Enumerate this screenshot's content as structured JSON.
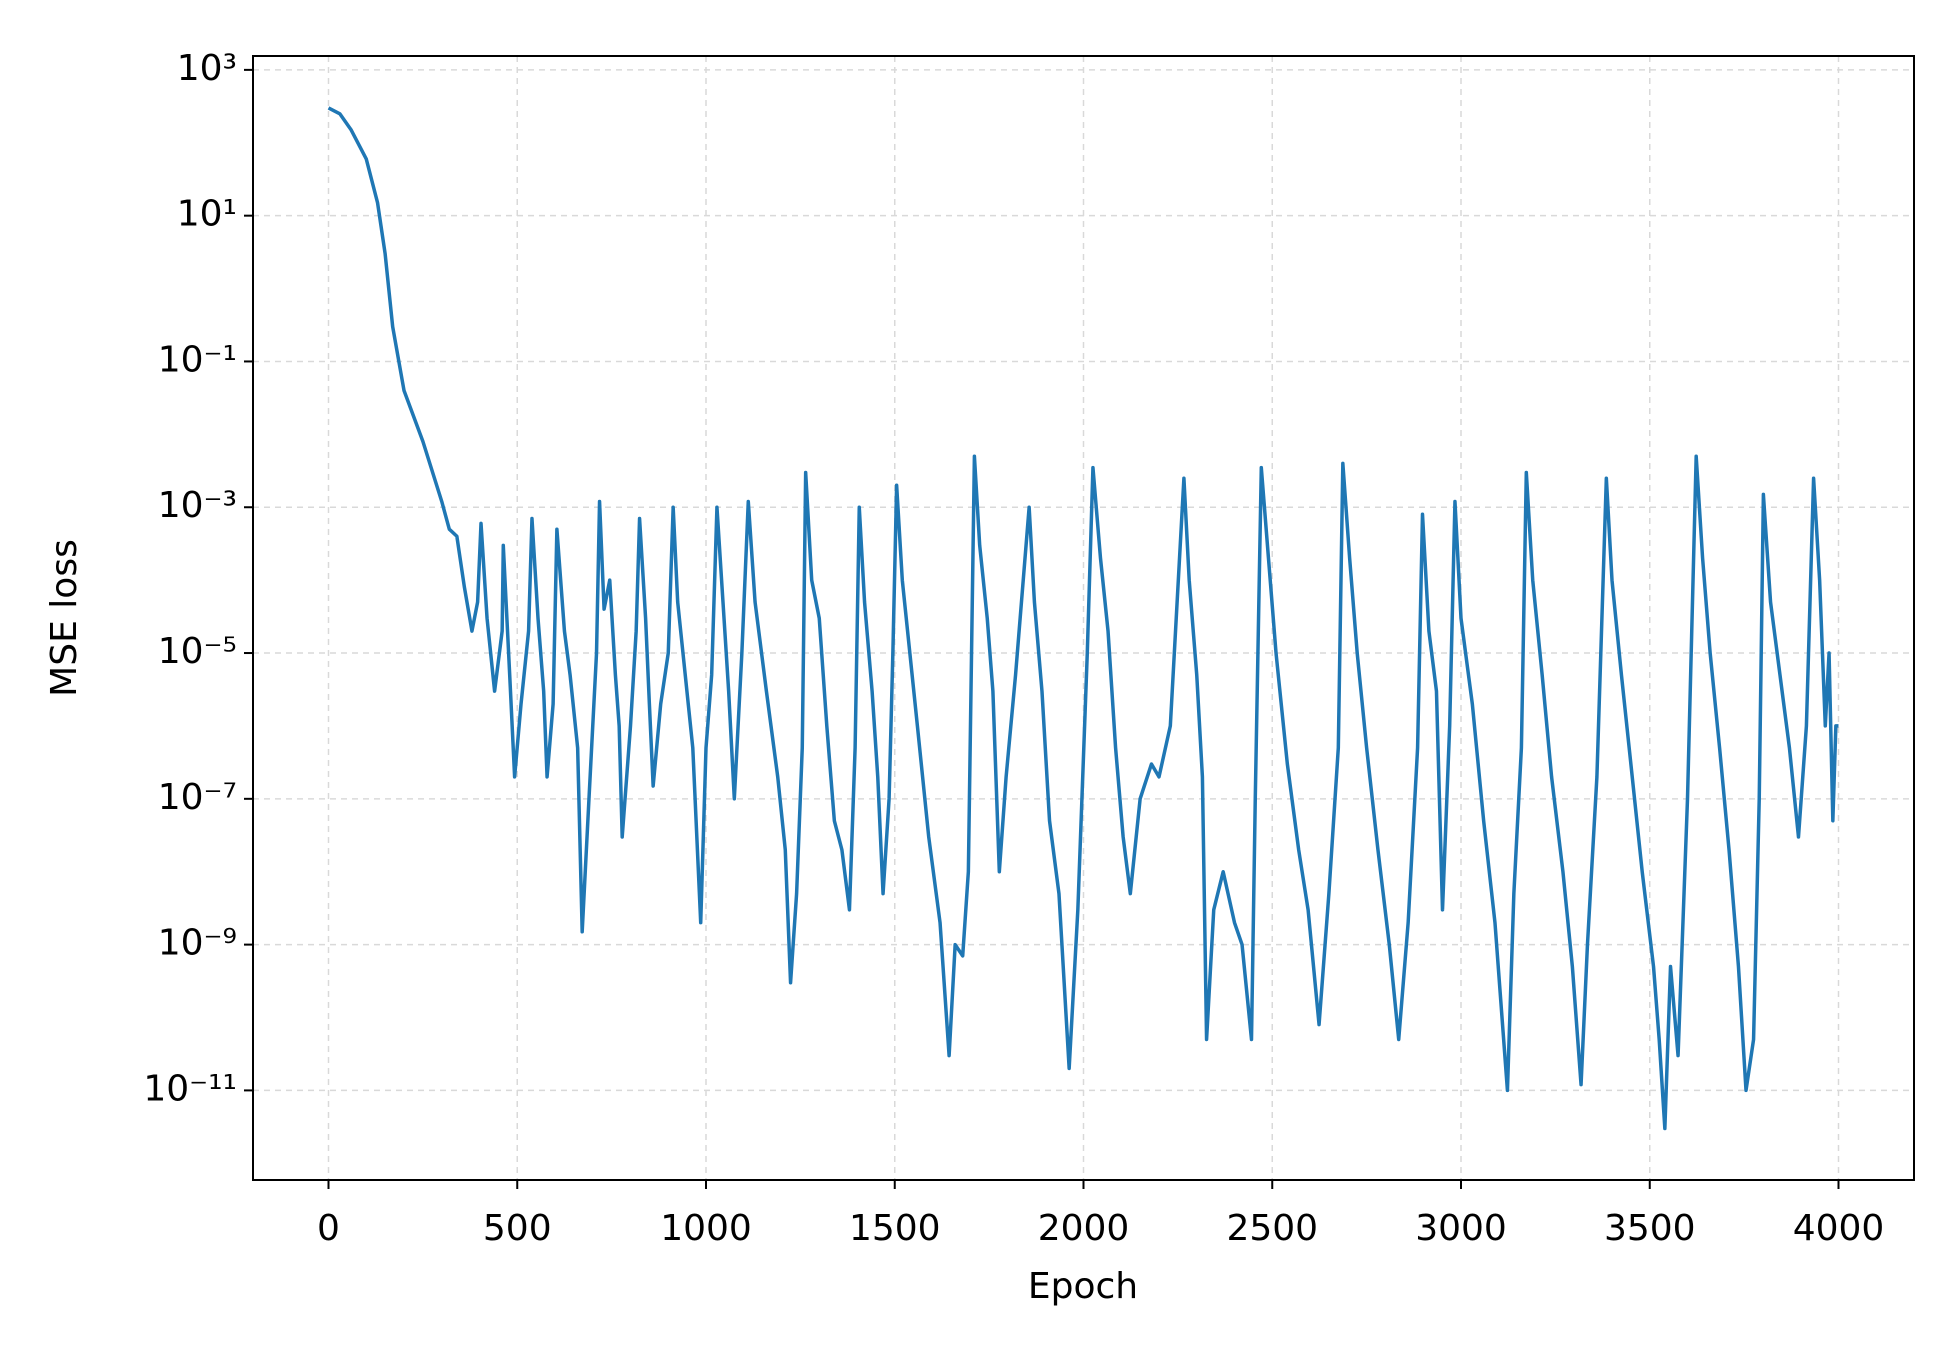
{
  "chart_data": {
    "type": "line",
    "xlabel": "Epoch",
    "ylabel": "MSE loss",
    "log_y": true,
    "grid": true,
    "xlim": [
      -200,
      4200
    ],
    "ylim": [
      5.9e-13,
      1550
    ],
    "xticks": [
      0,
      500,
      1000,
      1500,
      2000,
      2500,
      3000,
      3500,
      4000
    ],
    "yticks": [
      {
        "value": 1000,
        "label": "10³"
      },
      {
        "value": 10,
        "label": "10¹"
      },
      {
        "value": 0.1,
        "label": "10⁻¹"
      },
      {
        "value": 0.001,
        "label": "10⁻³"
      },
      {
        "value": 1e-05,
        "label": "10⁻⁵"
      },
      {
        "value": 1e-07,
        "label": "10⁻⁷"
      },
      {
        "value": 1e-09,
        "label": "10⁻⁹"
      },
      {
        "value": 1e-11,
        "label": "10⁻¹¹"
      }
    ],
    "x": [
      0,
      30,
      60,
      100,
      130,
      150,
      170,
      200,
      250,
      300,
      320,
      340,
      360,
      380,
      395,
      404,
      420,
      440,
      460,
      463,
      480,
      493,
      510,
      530,
      539,
      555,
      570,
      579,
      595,
      605,
      625,
      640,
      660,
      672,
      690,
      710,
      718,
      730,
      745,
      760,
      770,
      778,
      800,
      815,
      824,
      840,
      850,
      860,
      880,
      900,
      913,
      925,
      945,
      965,
      986,
      1000,
      1015,
      1029,
      1045,
      1060,
      1075,
      1095,
      1112,
      1130,
      1160,
      1190,
      1210,
      1224,
      1240,
      1255,
      1264,
      1280,
      1300,
      1320,
      1340,
      1360,
      1380,
      1395,
      1406,
      1420,
      1440,
      1455,
      1469,
      1485,
      1495,
      1505,
      1520,
      1540,
      1560,
      1590,
      1620,
      1644,
      1660,
      1680,
      1695,
      1711,
      1725,
      1745,
      1760,
      1777,
      1795,
      1820,
      1856,
      1870,
      1890,
      1910,
      1935,
      1962,
      1985,
      2010,
      2025,
      2045,
      2065,
      2085,
      2105,
      2124,
      2150,
      2180,
      2200,
      2230,
      2266,
      2280,
      2300,
      2315,
      2326,
      2345,
      2370,
      2400,
      2420,
      2445,
      2455,
      2471,
      2490,
      2510,
      2540,
      2570,
      2595,
      2624,
      2650,
      2675,
      2687,
      2705,
      2725,
      2750,
      2780,
      2810,
      2835,
      2860,
      2885,
      2898,
      2915,
      2935,
      2951,
      2970,
      2984,
      3000,
      3030,
      3060,
      3090,
      3123,
      3140,
      3160,
      3173,
      3190,
      3215,
      3240,
      3270,
      3295,
      3318,
      3335,
      3360,
      3385,
      3400,
      3425,
      3450,
      3480,
      3510,
      3525,
      3540,
      3555,
      3575,
      3600,
      3623,
      3640,
      3660,
      3685,
      3710,
      3735,
      3755,
      3775,
      3790,
      3801,
      3820,
      3845,
      3870,
      3894,
      3915,
      3934,
      3950,
      3965,
      3975,
      3985,
      3993,
      4000
    ],
    "series": [
      {
        "color": "#1f77b4",
        "values": [
          300,
          250,
          150,
          60,
          15,
          3,
          0.3,
          0.04,
          0.008,
          0.0012,
          0.0005,
          0.0004,
          8e-05,
          2e-05,
          5e-05,
          0.0006,
          3e-05,
          3e-06,
          2e-05,
          0.0003,
          5e-06,
          2e-07,
          2e-06,
          2e-05,
          0.0007,
          3e-05,
          3e-06,
          2e-07,
          2e-06,
          0.0005,
          2e-05,
          5e-06,
          5e-07,
          1.5e-09,
          1e-07,
          1e-05,
          0.0012,
          4e-05,
          0.0001,
          5e-06,
          1e-06,
          3e-08,
          1e-06,
          2e-05,
          0.0007,
          3e-05,
          2e-06,
          1.5e-07,
          2e-06,
          1e-05,
          0.001,
          5e-05,
          5e-06,
          5e-07,
          2e-09,
          5e-07,
          5e-06,
          0.001,
          5e-05,
          3e-06,
          1e-07,
          1e-05,
          0.0012,
          5e-05,
          3e-06,
          2e-07,
          2e-08,
          3e-10,
          5e-09,
          5e-07,
          0.003,
          0.0001,
          3e-05,
          1e-06,
          5e-08,
          2e-08,
          3e-09,
          5e-07,
          0.001,
          5e-05,
          3e-06,
          2e-07,
          5e-09,
          1e-07,
          1e-05,
          0.002,
          0.0001,
          1e-05,
          1e-06,
          3e-08,
          2e-09,
          3e-11,
          1e-09,
          7e-10,
          1e-08,
          0.005,
          0.0003,
          3e-05,
          3e-06,
          1e-08,
          2e-07,
          5e-06,
          0.001,
          5e-05,
          3e-06,
          5e-08,
          5e-09,
          2e-11,
          3e-09,
          1e-05,
          0.0035,
          0.0002,
          2e-05,
          5e-07,
          3e-08,
          5e-09,
          1e-07,
          3e-07,
          2e-07,
          1e-06,
          0.0025,
          0.0001,
          5e-06,
          2e-07,
          5e-11,
          3e-09,
          1e-08,
          2e-09,
          1e-09,
          5e-11,
          1e-07,
          0.0035,
          0.0002,
          1e-05,
          3e-07,
          2e-08,
          3e-09,
          8e-11,
          5e-09,
          5e-07,
          0.004,
          0.0002,
          1e-05,
          5e-07,
          2e-08,
          1e-09,
          5e-11,
          2e-09,
          5e-07,
          0.0008,
          2e-05,
          3e-06,
          3e-09,
          1e-06,
          0.0012,
          3e-05,
          2e-06,
          5e-08,
          2e-09,
          1e-11,
          5e-09,
          5e-07,
          0.003,
          0.0001,
          5e-06,
          2e-07,
          1e-08,
          5e-10,
          1.2e-11,
          1e-09,
          2e-07,
          0.0025,
          0.0001,
          5e-06,
          3e-07,
          1e-08,
          5e-10,
          5e-11,
          3e-12,
          5e-10,
          3e-11,
          1e-07,
          0.005,
          0.0002,
          1e-05,
          5e-07,
          2e-08,
          5e-10,
          1e-11,
          5e-11,
          1e-07,
          0.0015,
          5e-05,
          5e-06,
          5e-07,
          3e-08,
          1e-06,
          0.0025,
          0.0001,
          1e-06,
          1e-05,
          5e-08,
          1e-06,
          1e-06
        ]
      }
    ]
  }
}
